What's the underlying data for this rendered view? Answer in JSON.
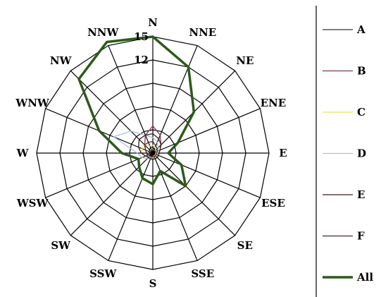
{
  "chart_data": {
    "type": "radar",
    "directions": [
      "N",
      "NNE",
      "NE",
      "ENE",
      "E",
      "ESE",
      "SE",
      "SSE",
      "S",
      "SSW",
      "SW",
      "WSW",
      "W",
      "WNW",
      "NW",
      "NNW"
    ],
    "rmax": 15,
    "ticks": [
      3,
      6,
      9,
      12,
      15
    ],
    "tick_labels_shown": [
      "12",
      "15"
    ],
    "grid": true,
    "legend_position": "right",
    "series": [
      {
        "name": "A",
        "color": "#000000",
        "width": 1,
        "values": [
          0.8,
          0.5,
          0.5,
          0.4,
          0.4,
          0.4,
          0.4,
          0.4,
          0.5,
          0.4,
          0.4,
          0.4,
          0.4,
          0.5,
          0.6,
          0.8
        ]
      },
      {
        "name": "B",
        "color": "#8b3a4a",
        "width": 1.3,
        "values": [
          3.5,
          2.5,
          1.5,
          1.0,
          0.8,
          0.8,
          0.8,
          0.8,
          0.8,
          0.8,
          0.8,
          0.8,
          0.8,
          1.0,
          1.5,
          2.5
        ]
      },
      {
        "name": "C",
        "color": "#e8e060",
        "width": 1.3,
        "values": [
          1.0,
          0.8,
          0.5,
          0.5,
          0.4,
          0.4,
          0.4,
          0.4,
          0.5,
          0.5,
          0.8,
          1.0,
          1.5,
          1.5,
          1.5,
          1.0
        ]
      },
      {
        "name": "D",
        "color": "#a8c4dc",
        "width": 1.3,
        "values": [
          2.0,
          1.5,
          1.0,
          0.8,
          0.6,
          0.5,
          0.5,
          0.5,
          0.6,
          0.8,
          1.0,
          1.5,
          2.0,
          5.5,
          4.0,
          2.5
        ]
      },
      {
        "name": "E",
        "color": "#3a1a1a",
        "width": 1.3,
        "values": [
          2.5,
          2.0,
          1.5,
          1.0,
          0.8,
          0.8,
          0.8,
          0.8,
          0.8,
          0.8,
          0.8,
          1.0,
          1.5,
          2.0,
          2.5,
          2.5
        ]
      },
      {
        "name": "F",
        "color": "#4a2a2a",
        "width": 1.3,
        "values": [
          1.5,
          1.0,
          0.8,
          0.6,
          0.5,
          0.5,
          0.5,
          0.5,
          0.5,
          0.5,
          0.5,
          0.6,
          0.8,
          1.0,
          1.5,
          1.5
        ]
      },
      {
        "name": "All",
        "color": "#2d5a1b",
        "width": 3.5,
        "values": [
          15.0,
          12.0,
          7.5,
          3.5,
          2.0,
          4.0,
          6.0,
          2.5,
          4.0,
          3.5,
          2.5,
          2.0,
          4.0,
          7.5,
          13.5,
          15.5
        ]
      }
    ]
  }
}
